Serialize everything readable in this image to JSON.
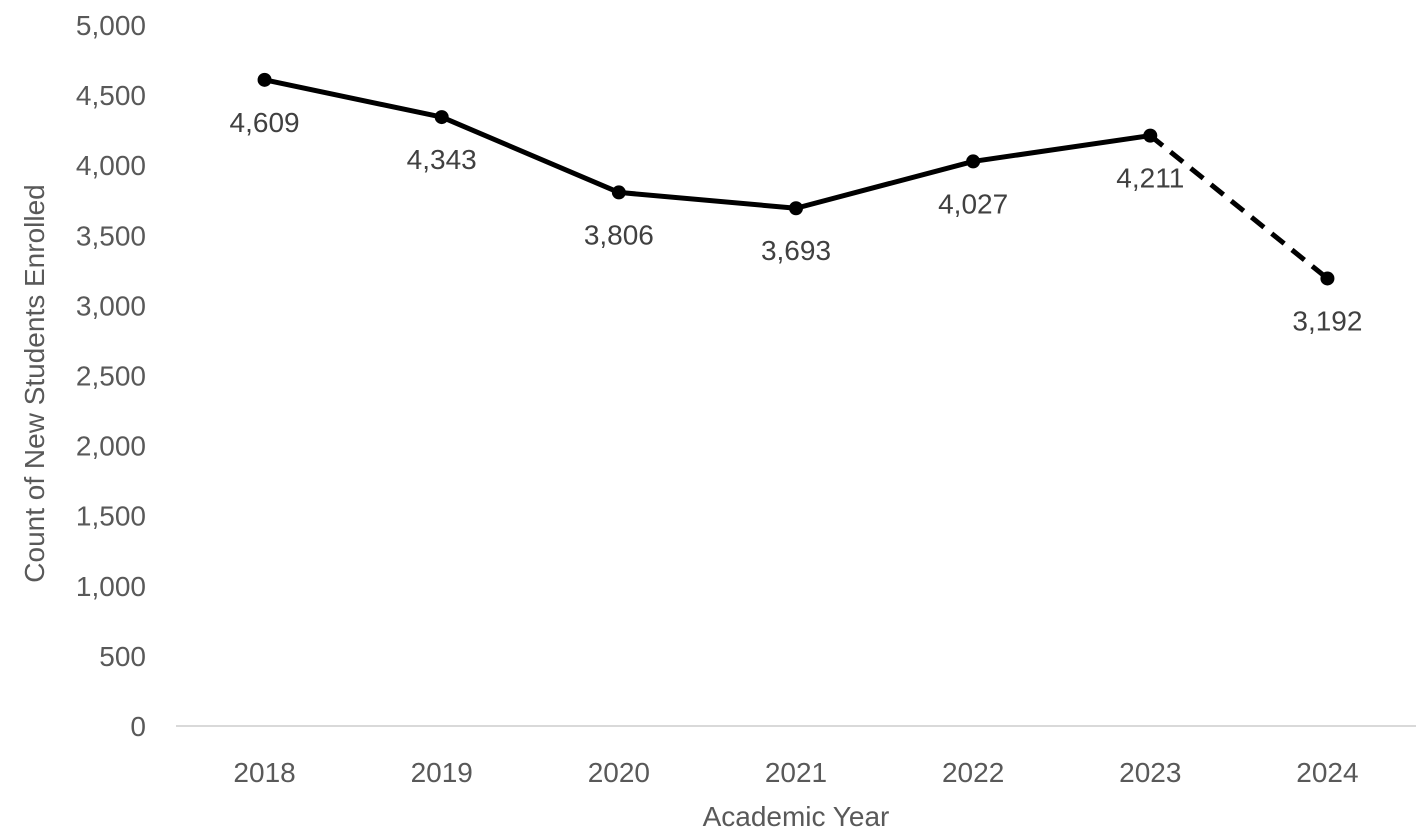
{
  "chart_data": {
    "type": "line",
    "title": "",
    "xlabel": "Academic Year",
    "ylabel": "Count of New Students Enrolled",
    "categories": [
      "2018",
      "2019",
      "2020",
      "2021",
      "2022",
      "2023",
      "2024"
    ],
    "values": [
      4609,
      4343,
      3806,
      3693,
      4027,
      4211,
      3192
    ],
    "data_labels": [
      "4,609",
      "4,343",
      "3,806",
      "3,693",
      "4,027",
      "4,211",
      "3,192"
    ],
    "ylim": [
      0,
      5000
    ],
    "yticks": [
      0,
      500,
      1000,
      1500,
      2000,
      2500,
      3000,
      3500,
      4000,
      4500,
      5000
    ],
    "ytick_labels": [
      "0",
      "500",
      "1,000",
      "1,500",
      "2,000",
      "2,500",
      "3,000",
      "3,500",
      "4,000",
      "4,500",
      "5,000"
    ],
    "line_style": "solid from 2018 to 2023, dashed from 2023 to 2024",
    "line_color": "#000000",
    "grid": false,
    "legend": "none"
  }
}
